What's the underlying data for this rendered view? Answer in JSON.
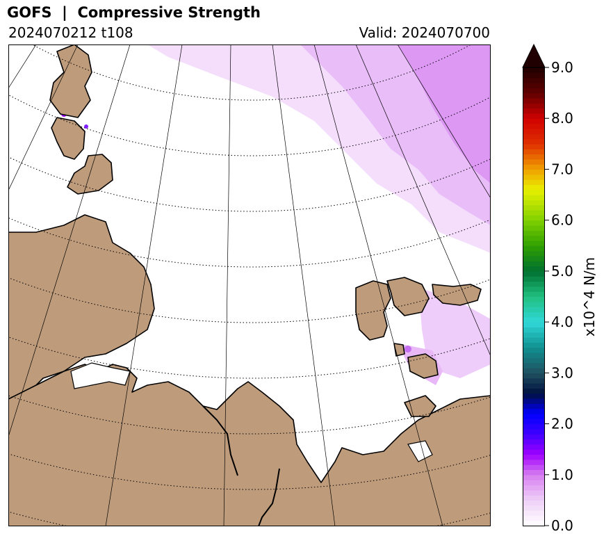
{
  "header": {
    "title": "GOFS  |  Compressive Strength",
    "run": "2024070212 t108",
    "valid": "Valid: 2024070700"
  },
  "colorbar": {
    "label": "x10^4 N/m",
    "ticks": [
      "0.0",
      "1.0",
      "2.0",
      "3.0",
      "4.0",
      "5.0",
      "6.0",
      "7.0",
      "8.0",
      "9.0"
    ],
    "range": [
      0,
      9
    ],
    "extend": "max",
    "stops": [
      {
        "v": 0.0,
        "c": "#ffffff"
      },
      {
        "v": 0.5,
        "c": "#eed0f8"
      },
      {
        "v": 1.0,
        "c": "#d77ef0"
      },
      {
        "v": 1.4,
        "c": "#a000ff"
      },
      {
        "v": 1.8,
        "c": "#4000ff"
      },
      {
        "v": 2.2,
        "c": "#0000ff"
      },
      {
        "v": 2.6,
        "c": "#001040"
      },
      {
        "v": 3.0,
        "c": "#205060"
      },
      {
        "v": 3.5,
        "c": "#109090"
      },
      {
        "v": 4.0,
        "c": "#30d8d8"
      },
      {
        "v": 4.5,
        "c": "#20c080"
      },
      {
        "v": 5.0,
        "c": "#007030"
      },
      {
        "v": 5.5,
        "c": "#30a000"
      },
      {
        "v": 6.0,
        "c": "#80d000"
      },
      {
        "v": 6.6,
        "c": "#e8f000"
      },
      {
        "v": 7.0,
        "c": "#f0a000"
      },
      {
        "v": 7.5,
        "c": "#e03000"
      },
      {
        "v": 8.0,
        "c": "#d00000"
      },
      {
        "v": 8.5,
        "c": "#600000"
      },
      {
        "v": 9.0,
        "c": "#200000"
      }
    ]
  },
  "map": {
    "land_color": "#be9b7b",
    "ice_color_light": "#f3dcfb",
    "ice_color_mid": "#e3a8f6",
    "ice_color_strong": "#b44cf0",
    "gridlines": "dotted latitude circles and solid meridians"
  }
}
